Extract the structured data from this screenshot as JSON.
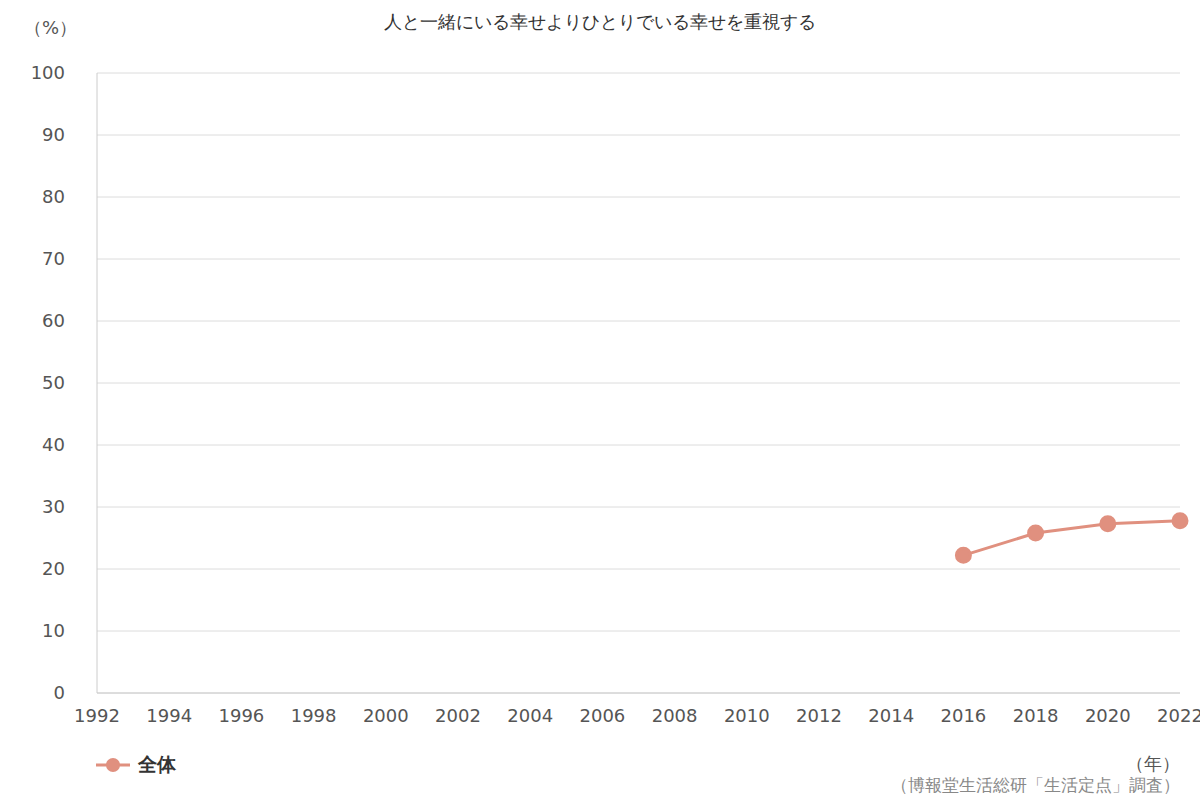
{
  "chart_data": {
    "type": "line",
    "title": "人と一緒にいる幸せよりひとりでいる幸せを重視する",
    "y_label": "（%）",
    "x_label": "（年）",
    "source": "（博報堂生活総研「生活定点」調査）",
    "categories": [
      "1992",
      "1994",
      "1996",
      "1998",
      "2000",
      "2002",
      "2004",
      "2006",
      "2008",
      "2010",
      "2012",
      "2014",
      "2016",
      "2018",
      "2020",
      "2022"
    ],
    "series": [
      {
        "name": "全体",
        "color": "#e0907f",
        "marker": "circle",
        "values": [
          null,
          null,
          null,
          null,
          null,
          null,
          null,
          null,
          null,
          null,
          null,
          null,
          22.2,
          25.8,
          27.3,
          27.8
        ]
      }
    ],
    "ylim": [
      0,
      100
    ],
    "yticks": [
      0,
      10,
      20,
      30,
      40,
      50,
      60,
      70,
      80,
      90,
      100
    ],
    "grid": true,
    "legend": "bottom left"
  }
}
